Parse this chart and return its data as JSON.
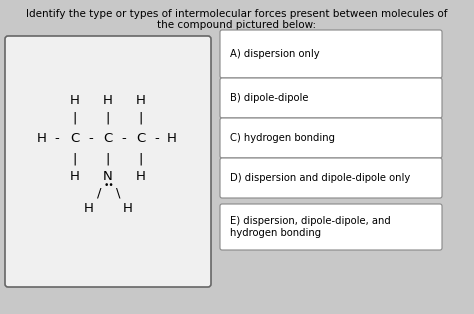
{
  "title_line1": "Identify the type or types of intermolecular forces present between molecules of",
  "title_line2": "the compound pictured below:",
  "title_fontsize": 7.5,
  "bg_color": "#c8c8c8",
  "figsize": [
    4.74,
    3.14
  ],
  "dpi": 100,
  "answer_options": [
    "A) dispersion only",
    "B) dipole-dipole",
    "C) hydrogen bonding",
    "D) dispersion and dipole-dipole only",
    "E) dispersion, dipole-dipole, and\nhydrogen bonding"
  ],
  "mol_fs": 9.5,
  "mol_fs_small": 6.5,
  "ans_fs": 7.2
}
